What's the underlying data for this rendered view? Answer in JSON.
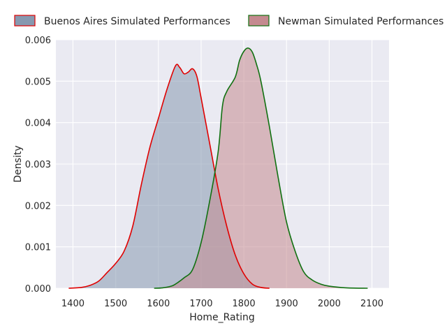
{
  "chart_data": {
    "type": "area",
    "title": "",
    "xlabel": "Home_Rating",
    "ylabel": "Density",
    "xlim": [
      1360,
      2140
    ],
    "ylim": [
      0,
      0.006
    ],
    "xticks": [
      1400,
      1500,
      1600,
      1700,
      1800,
      1900,
      2000,
      2100
    ],
    "xtick_labels": [
      "1400",
      "1500",
      "1600",
      "1700",
      "1800",
      "1900",
      "2000",
      "2100"
    ],
    "yticks": [
      0,
      0.001,
      0.002,
      0.003,
      0.004,
      0.005,
      0.006
    ],
    "ytick_labels": [
      "0.000",
      "0.001",
      "0.002",
      "0.003",
      "0.004",
      "0.005",
      "0.006"
    ],
    "grid": true,
    "legend_position": "top",
    "series": [
      {
        "name": "Buenos Aires Simulated Performances",
        "line_color": "#e00000",
        "fill_color": "#8799b0",
        "x": [
          1390,
          1420,
          1440,
          1460,
          1480,
          1500,
          1520,
          1540,
          1560,
          1580,
          1600,
          1620,
          1640,
          1650,
          1660,
          1670,
          1680,
          1690,
          1700,
          1720,
          1740,
          1760,
          1780,
          1800,
          1820,
          1840,
          1860
        ],
        "y": [
          0,
          2e-05,
          7e-05,
          0.00017,
          0.00038,
          0.0006,
          0.0009,
          0.0015,
          0.0025,
          0.0034,
          0.0041,
          0.0048,
          0.00537,
          0.00533,
          0.00518,
          0.00522,
          0.0053,
          0.00512,
          0.0046,
          0.0035,
          0.0024,
          0.0015,
          0.0008,
          0.00035,
          0.0001,
          2e-05,
          0
        ]
      },
      {
        "name": "Newman Simulated Performances",
        "line_color": "#107010",
        "fill_color": "#c48a8f",
        "x": [
          1590,
          1610,
          1630,
          1640,
          1660,
          1680,
          1700,
          1720,
          1740,
          1750,
          1760,
          1780,
          1790,
          1800,
          1810,
          1820,
          1830,
          1840,
          1860,
          1880,
          1900,
          1920,
          1940,
          1960,
          1980,
          2000,
          2040,
          2090
        ],
        "y": [
          0,
          1e-05,
          5e-05,
          0.0001,
          0.00025,
          0.00045,
          0.0011,
          0.0021,
          0.0033,
          0.0044,
          0.00475,
          0.0051,
          0.0055,
          0.00572,
          0.0058,
          0.0057,
          0.0054,
          0.005,
          0.0039,
          0.0027,
          0.0016,
          0.0009,
          0.0004,
          0.0002,
          0.0001,
          5e-05,
          1e-05,
          0
        ]
      }
    ]
  }
}
